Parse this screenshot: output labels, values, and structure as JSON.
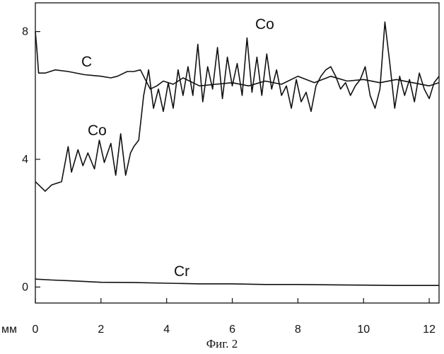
{
  "caption": "Фиг. 2",
  "chart_data": {
    "type": "line",
    "x_unit": "мм",
    "xlim": [
      0,
      12.3
    ],
    "ylim": [
      -0.5,
      8.9
    ],
    "x_ticks": [
      0,
      2,
      4,
      6,
      8,
      10,
      12
    ],
    "y_ticks": [
      0,
      4,
      8
    ],
    "x_tick_labels": [
      "0",
      "2",
      "4",
      "6",
      "8",
      "10",
      "12"
    ],
    "y_tick_labels": [
      "0",
      "4",
      "8"
    ],
    "grid": false,
    "legend": "none",
    "series": [
      {
        "name": "C",
        "color": "#111111",
        "x": [
          0,
          0.05,
          0.1,
          0.3,
          0.6,
          1,
          1.5,
          2,
          2.3,
          2.5,
          2.8,
          3.0,
          3.2,
          3.35,
          3.5,
          3.7,
          3.9,
          4.2,
          4.5,
          5,
          5.5,
          6,
          6.5,
          7,
          7.5,
          8,
          8.5,
          9,
          9.5,
          10,
          10.5,
          11,
          11.5,
          12,
          12.3
        ],
        "values": [
          8.0,
          7.4,
          6.7,
          6.7,
          6.8,
          6.75,
          6.65,
          6.6,
          6.55,
          6.6,
          6.75,
          6.75,
          6.8,
          6.5,
          6.2,
          6.3,
          6.45,
          6.35,
          6.55,
          6.3,
          6.35,
          6.4,
          6.3,
          6.45,
          6.35,
          6.6,
          6.4,
          6.6,
          6.45,
          6.5,
          6.4,
          6.5,
          6.4,
          6.3,
          6.4
        ]
      },
      {
        "name": "Co",
        "color": "#111111",
        "x": [
          0,
          0.3,
          0.5,
          0.8,
          1.0,
          1.1,
          1.3,
          1.45,
          1.6,
          1.8,
          1.95,
          2.1,
          2.3,
          2.45,
          2.6,
          2.75,
          2.9,
          3.0,
          3.15,
          3.3,
          3.45,
          3.6,
          3.75,
          3.9,
          4.05,
          4.2,
          4.35,
          4.5,
          4.65,
          4.8,
          4.95,
          5.1,
          5.25,
          5.4,
          5.55,
          5.7,
          5.85,
          6.0,
          6.15,
          6.3,
          6.45,
          6.6,
          6.75,
          6.9,
          7.05,
          7.2,
          7.35,
          7.5,
          7.65,
          7.8,
          7.95,
          8.1,
          8.25,
          8.4,
          8.55,
          8.7,
          8.85,
          9.0,
          9.15,
          9.3,
          9.45,
          9.6,
          9.75,
          9.9,
          10.05,
          10.2,
          10.35,
          10.5,
          10.65,
          10.8,
          10.95,
          11.1,
          11.25,
          11.4,
          11.55,
          11.7,
          11.85,
          12.0,
          12.15,
          12.3
        ],
        "values": [
          3.3,
          3.0,
          3.2,
          3.3,
          4.4,
          3.6,
          4.3,
          3.8,
          4.2,
          3.7,
          4.6,
          3.9,
          4.5,
          3.5,
          4.8,
          3.5,
          4.2,
          4.4,
          4.6,
          6.0,
          6.8,
          5.6,
          6.2,
          5.5,
          6.4,
          5.6,
          6.8,
          6.0,
          6.9,
          6.0,
          7.6,
          5.8,
          6.9,
          6.2,
          7.5,
          5.9,
          7.2,
          6.3,
          7.0,
          6.0,
          7.8,
          6.1,
          7.2,
          6.0,
          7.3,
          6.2,
          6.8,
          6.0,
          6.3,
          5.6,
          6.5,
          5.8,
          6.1,
          5.5,
          6.3,
          6.6,
          6.8,
          6.9,
          6.6,
          6.2,
          6.4,
          6.0,
          6.3,
          6.5,
          6.9,
          6.0,
          5.6,
          6.2,
          8.3,
          7.0,
          5.6,
          6.6,
          6.0,
          6.5,
          5.8,
          6.7,
          6.2,
          5.9,
          6.4,
          6.6
        ]
      },
      {
        "name": "Cr",
        "color": "#111111",
        "x": [
          0,
          0.5,
          1,
          2,
          3,
          4,
          5,
          6,
          7,
          8,
          9,
          10,
          11,
          12,
          12.3
        ],
        "values": [
          0.25,
          0.22,
          0.2,
          0.15,
          0.14,
          0.12,
          0.1,
          0.1,
          0.08,
          0.08,
          0.07,
          0.06,
          0.05,
          0.05,
          0.05
        ]
      }
    ],
    "annotations": [
      {
        "text": "C",
        "series": "C"
      },
      {
        "text": "Co",
        "series": "Co"
      },
      {
        "text": "Co",
        "series": "Co"
      },
      {
        "text": "Cr",
        "series": "Cr"
      }
    ]
  }
}
